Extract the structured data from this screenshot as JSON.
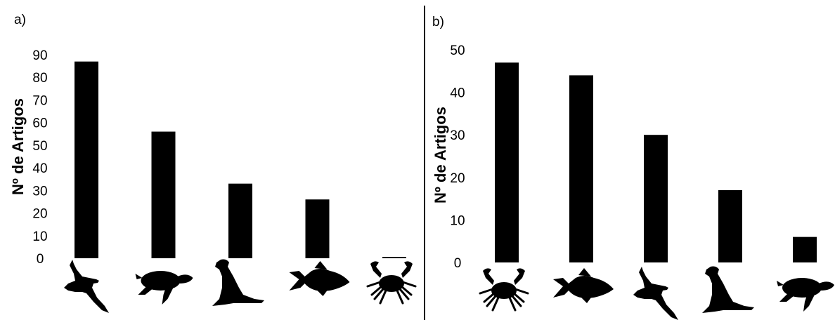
{
  "chart_data": [
    {
      "type": "bar",
      "panel_label": "a)",
      "title": "",
      "ylabel": "Nº de Artigos",
      "xlabel": "",
      "ylim": [
        0,
        90
      ],
      "yticks": [
        "0",
        "10",
        "20",
        "30",
        "40",
        "50",
        "60",
        "70",
        "80",
        "90"
      ],
      "categories": [
        "bird-icon",
        "turtle-icon",
        "sea-lion-icon",
        "fish-icon",
        "crab-icon"
      ],
      "values": [
        87,
        56,
        33,
        26,
        0
      ]
    },
    {
      "type": "bar",
      "panel_label": "b)",
      "title": "",
      "ylabel": "Nº de Artigos",
      "xlabel": "",
      "ylim": [
        0,
        50
      ],
      "yticks": [
        "0",
        "10",
        "20",
        "30",
        "40",
        "50"
      ],
      "categories": [
        "crab-icon",
        "fish-icon",
        "bird-icon",
        "sea-lion-icon",
        "turtle-icon"
      ],
      "values": [
        47,
        44,
        30,
        17,
        6
      ]
    }
  ],
  "colors": {
    "bars": "#000000",
    "background": "#ffffff",
    "icons": "#000000"
  }
}
